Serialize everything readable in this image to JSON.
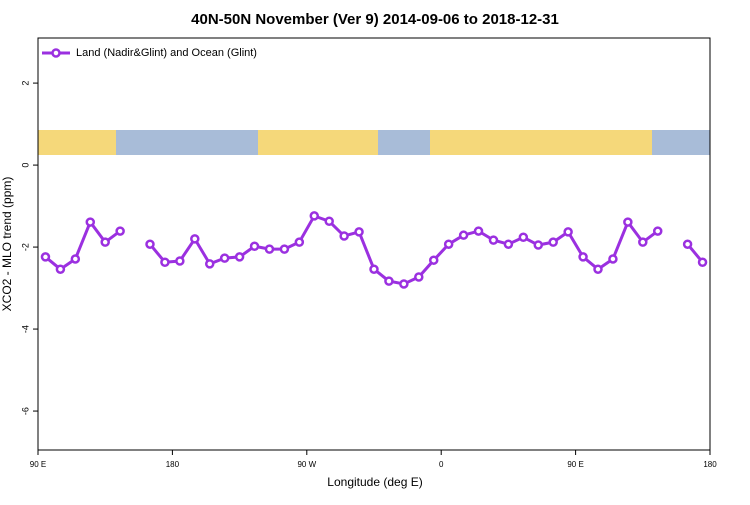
{
  "chart_data": {
    "type": "line",
    "title": "40N-50N November (Ver 9)   2014-09-06 to 2018-12-31",
    "x_label": "Longitude (deg E)",
    "y_label": "XCO2 - MLO trend (ppm)",
    "x": [
      95,
      105,
      115,
      125,
      135,
      145,
      155,
      165,
      175,
      185,
      195,
      205,
      215,
      225,
      235,
      245,
      255,
      265,
      275,
      285,
      295,
      305,
      315,
      325,
      335,
      345,
      355,
      365,
      375,
      385,
      395,
      405,
      415,
      425,
      435,
      445,
      455,
      465,
      475,
      485,
      495,
      505,
      515,
      525,
      535
    ],
    "series": [
      {
        "name": "Land (Nadir&Glint) and Ocean (Glint)",
        "color": "#9b30e0",
        "values": [
          -2.24,
          -2.54,
          -2.29,
          -1.39,
          -1.88,
          -1.61,
          null,
          -1.93,
          -2.37,
          -2.34,
          -1.8,
          -2.41,
          -2.27,
          -2.24,
          -1.98,
          -2.05,
          -2.05,
          -1.88,
          -1.24,
          -1.37,
          -1.73,
          -1.63,
          -2.54,
          -2.83,
          -2.9,
          -2.73,
          -2.32,
          -1.93,
          -1.71,
          -1.61,
          -1.83,
          -1.93,
          -1.76,
          -1.95,
          -1.88,
          -1.63,
          -2.24,
          -2.54,
          -2.29,
          -1.39,
          -1.88,
          -1.61,
          null,
          -1.93,
          -2.37
        ]
      }
    ],
    "xlim": [
      90,
      540
    ],
    "xticks": [
      {
        "value": 90,
        "label": "90 E"
      },
      {
        "value": 180,
        "label": "180"
      },
      {
        "value": 270,
        "label": "90 W"
      },
      {
        "value": 360,
        "label": "0"
      },
      {
        "value": 450,
        "label": "90 E"
      },
      {
        "value": 540,
        "label": "180"
      }
    ],
    "ylim": [
      -6.95,
      3.1
    ],
    "yticks": [
      2,
      0,
      -2,
      -4,
      -6
    ],
    "legend": "top-left"
  }
}
